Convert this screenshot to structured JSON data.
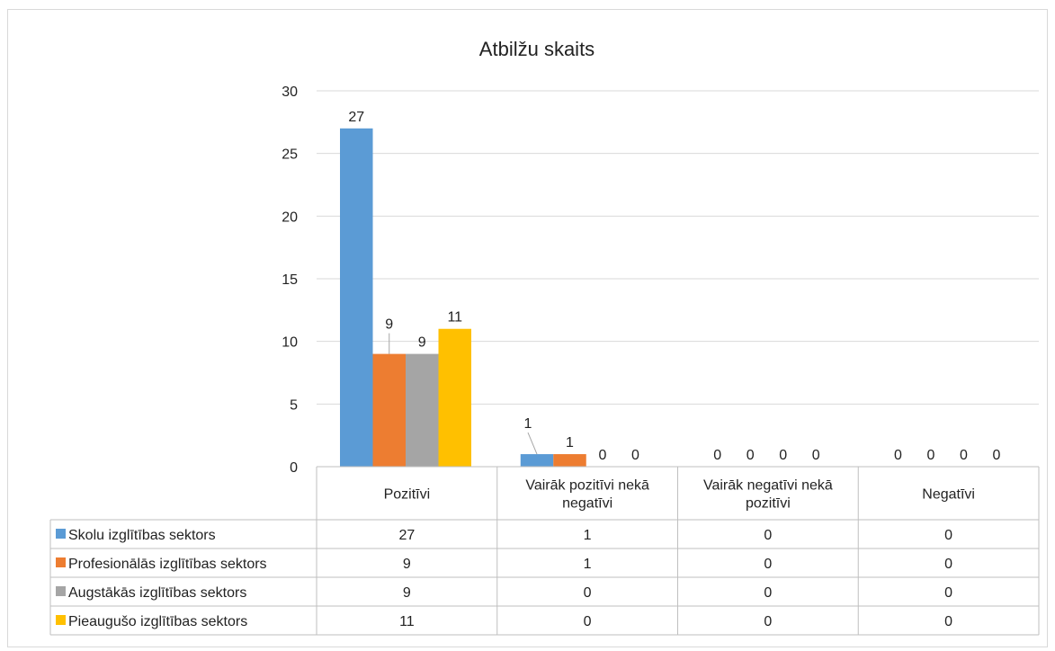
{
  "chart_data": {
    "type": "bar",
    "title": "Atbilžu skaits",
    "categories": [
      [
        "Pozitīvi"
      ],
      [
        "Vairāk pozitīvi nekā",
        "negatīvi"
      ],
      [
        "Vairāk negatīvi nekā",
        "pozitīvi"
      ],
      [
        "Negatīvi"
      ]
    ],
    "series": [
      {
        "name": "Skolu izglītības sektors",
        "color": "#5b9bd5",
        "values": [
          27,
          1,
          0,
          0
        ]
      },
      {
        "name": "Profesionālās izglītības sektors",
        "color": "#ed7d31",
        "values": [
          9,
          1,
          0,
          0
        ]
      },
      {
        "name": "Augstākās izglītības sektors",
        "color": "#a5a5a5",
        "values": [
          9,
          0,
          0,
          0
        ]
      },
      {
        "name": "Pieaugušo izglītības sektors",
        "color": "#ffc000",
        "values": [
          11,
          0,
          0,
          0
        ]
      }
    ],
    "ylim": [
      0,
      30
    ],
    "yticks": [
      0,
      5,
      10,
      15,
      20,
      25,
      30
    ],
    "grid": true,
    "legend": "data-table",
    "data_table": true
  }
}
